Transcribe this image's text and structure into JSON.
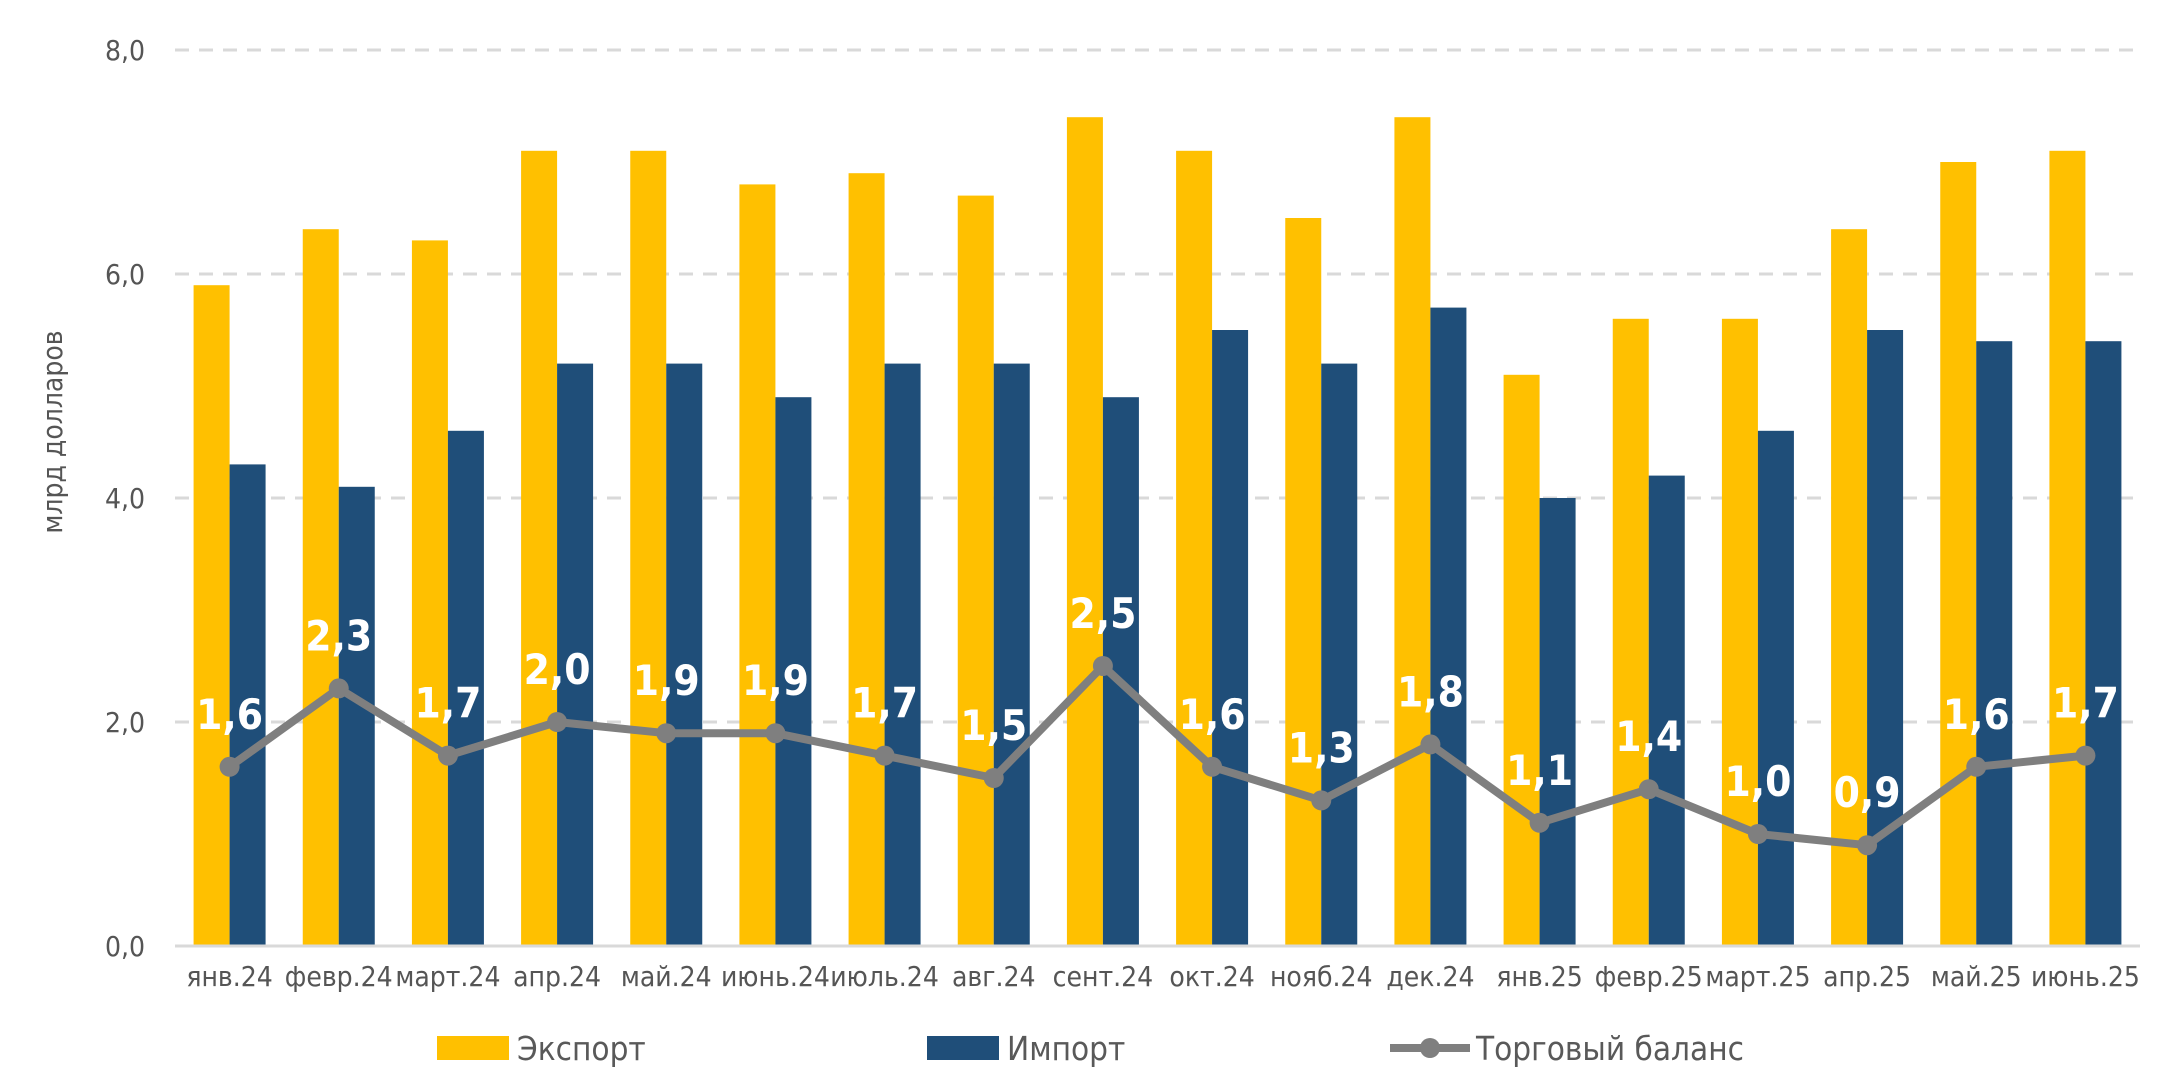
{
  "chart_data": {
    "type": "bar",
    "title": "",
    "xlabel": "",
    "ylabel": "млрд долларов",
    "ylim": [
      0,
      8
    ],
    "yticks": [
      "0,0",
      "2,0",
      "4,0",
      "6,0",
      "8,0"
    ],
    "grid": true,
    "legend_position": "bottom",
    "categories": [
      "янв.24",
      "февр.24",
      "март.24",
      "апр.24",
      "май.24",
      "июнь.24",
      "июль.24",
      "авг.24",
      "сент.24",
      "окт.24",
      "нояб.24",
      "дек.24",
      "янв.25",
      "февр.25",
      "март.25",
      "апр.25",
      "май.25",
      "июнь.25"
    ],
    "series": [
      {
        "name": "Экспорт",
        "type": "bar",
        "color": "#FFC000",
        "values": [
          5.9,
          6.4,
          6.3,
          7.1,
          7.1,
          6.8,
          6.9,
          6.7,
          7.4,
          7.1,
          6.5,
          7.4,
          5.1,
          5.6,
          5.6,
          6.4,
          7.0,
          7.1
        ]
      },
      {
        "name": "Импорт",
        "type": "bar",
        "color": "#1F4E79",
        "values": [
          4.3,
          4.1,
          4.6,
          5.2,
          5.2,
          4.9,
          5.2,
          5.2,
          4.9,
          5.5,
          5.2,
          5.7,
          4.0,
          4.2,
          4.6,
          5.5,
          5.4,
          5.4
        ]
      },
      {
        "name": "Торговый баланс",
        "type": "line",
        "color": "#7F7F7F",
        "values": [
          1.6,
          2.3,
          1.7,
          2.0,
          1.9,
          1.9,
          1.7,
          1.5,
          2.5,
          1.6,
          1.3,
          1.8,
          1.1,
          1.4,
          1.0,
          0.9,
          1.6,
          1.7
        ],
        "labels": [
          "1,6",
          "2,3",
          "1,7",
          "2,0",
          "1,9",
          "1,9",
          "1,7",
          "1,5",
          "2,5",
          "1,6",
          "1,3",
          "1,8",
          "1,1",
          "1,4",
          "1,0",
          "0,9",
          "1,6",
          "1,7"
        ]
      }
    ]
  }
}
